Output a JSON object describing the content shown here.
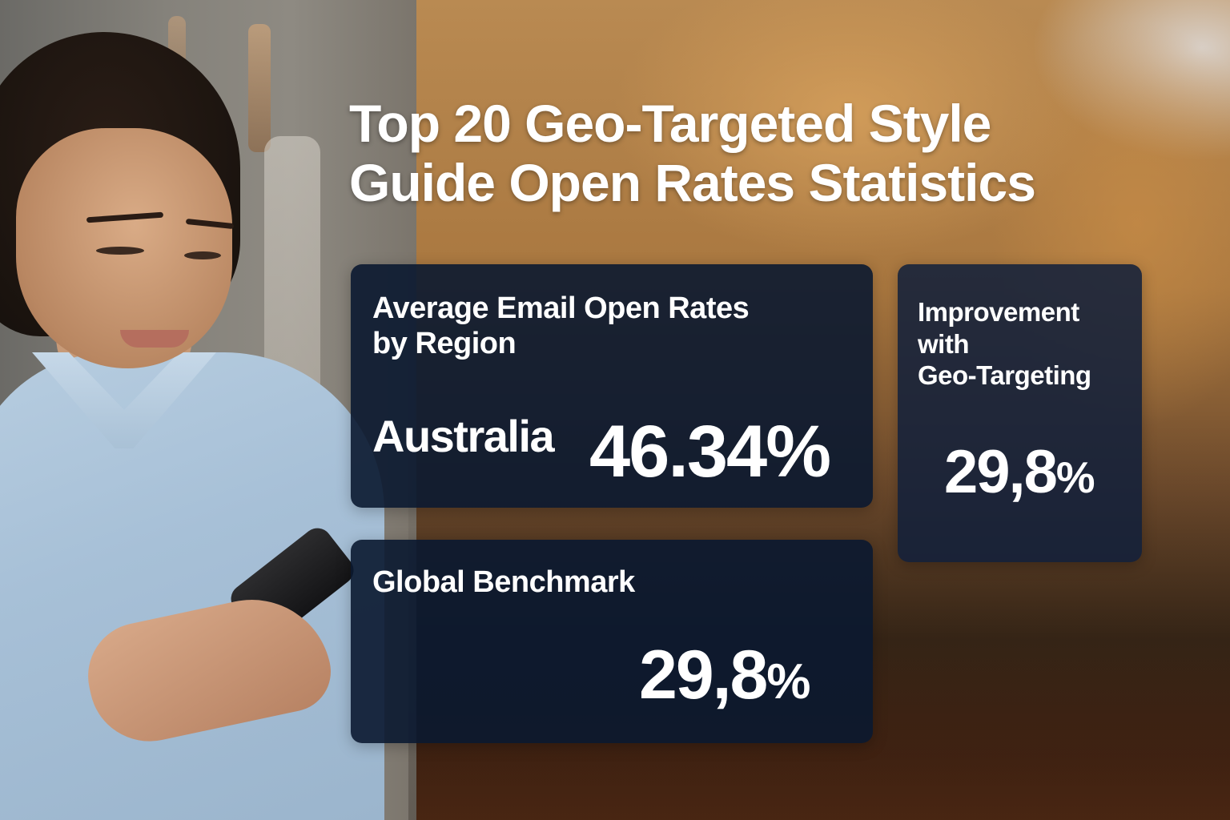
{
  "headline": {
    "line1": "Top 20 Geo-Targeted Style",
    "line2": "Guide Open Rates Statistics"
  },
  "cards": {
    "average_by_region": {
      "title_line1": "Average Email Open Rates",
      "title_line2": "by Region",
      "region": "Australia",
      "value": "46.34%"
    },
    "global_benchmark": {
      "title": "Global Benchmark",
      "value_number": "29,8",
      "value_unit": "%"
    },
    "improvement": {
      "title_line1": "Improvement",
      "title_line2": "with",
      "title_line3": "Geo-Targeting",
      "value_number": "29,8",
      "value_unit": "%"
    }
  },
  "colors": {
    "card_background": "#0a1830",
    "text": "#ffffff",
    "background_warm": "#a9773f"
  },
  "background_image": {
    "description": "Woman in light blue shirt smiling at smartphone; blurred person in mustard sweater using laptop on right"
  }
}
